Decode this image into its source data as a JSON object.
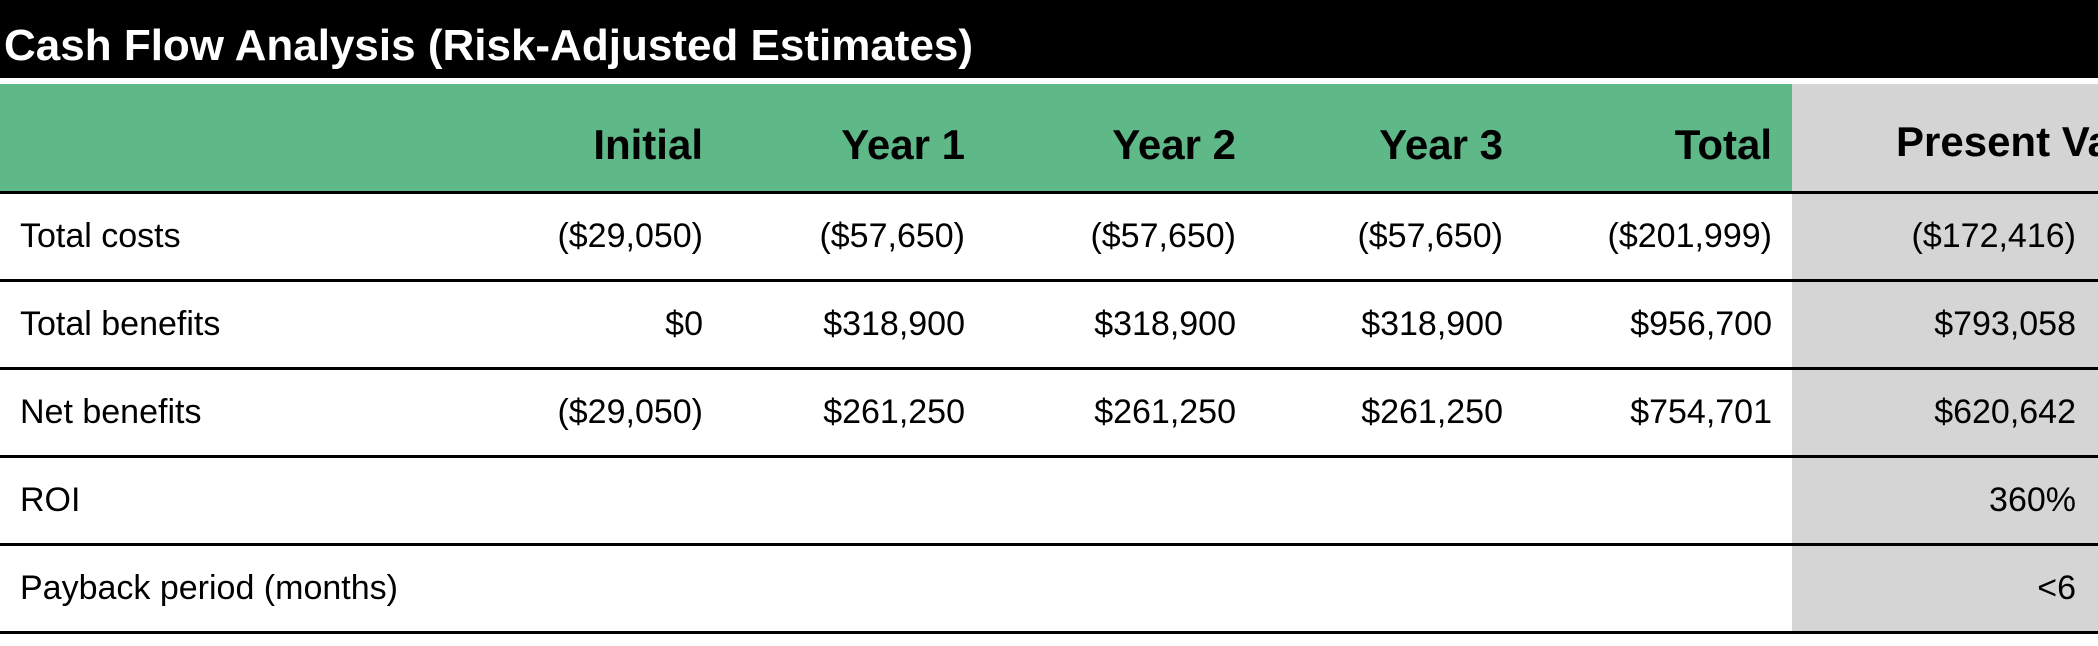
{
  "title": "Cash Flow Analysis (Risk-Adjusted Estimates)",
  "columns": {
    "initial": "Initial",
    "year1": "Year 1",
    "year2": "Year 2",
    "year3": "Year 3",
    "total": "Total",
    "present_value": "Present Value"
  },
  "rows": [
    {
      "label": "Total costs",
      "initial": "($29,050)",
      "year1": "($57,650)",
      "year2": "($57,650)",
      "year3": "($57,650)",
      "total": "($201,999)",
      "present_value": "($172,416)"
    },
    {
      "label": "Total benefits",
      "initial": "$0",
      "year1": "$318,900",
      "year2": "$318,900",
      "year3": "$318,900",
      "total": "$956,700",
      "present_value": "$793,058"
    },
    {
      "label": "Net benefits",
      "initial": "($29,050)",
      "year1": "$261,250",
      "year2": "$261,250",
      "year3": "$261,250",
      "total": "$754,701",
      "present_value": "$620,642"
    },
    {
      "label": "ROI",
      "present_value": "360%"
    },
    {
      "label": "Payback period (months)",
      "present_value": "<6"
    }
  ],
  "colors": {
    "header_green": "#5eb887",
    "present_value_gray": "#d5d5d5",
    "title_bg": "#000000",
    "title_fg": "#ffffff"
  }
}
